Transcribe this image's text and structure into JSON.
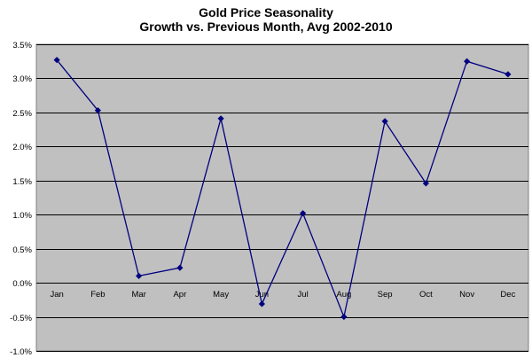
{
  "chart_data": {
    "type": "line",
    "title": "Gold Price Seasonality",
    "subtitle": "Growth vs. Previous Month, Avg 2002-2010",
    "categories": [
      "Jan",
      "Feb",
      "Mar",
      "Apr",
      "May",
      "Jun",
      "Jul",
      "Aug",
      "Sep",
      "Oct",
      "Nov",
      "Dec"
    ],
    "values": [
      3.27,
      2.53,
      0.1,
      0.22,
      2.41,
      -0.31,
      1.02,
      -0.5,
      2.37,
      1.46,
      3.25,
      3.06
    ],
    "unit": "%",
    "y_ticks": [
      "3.5%",
      "3.0%",
      "2.5%",
      "2.0%",
      "1.5%",
      "1.0%",
      "0.5%",
      "0.0%",
      "-0.5%",
      "-1.0%"
    ],
    "ylim": [
      -1.0,
      3.5
    ],
    "xlabel": "",
    "ylabel": "",
    "grid": true,
    "legend": "none",
    "colors": {
      "plot_background": "#C0C0C0",
      "line": "#000080",
      "marker": "#000080",
      "gridline": "#000000"
    }
  }
}
